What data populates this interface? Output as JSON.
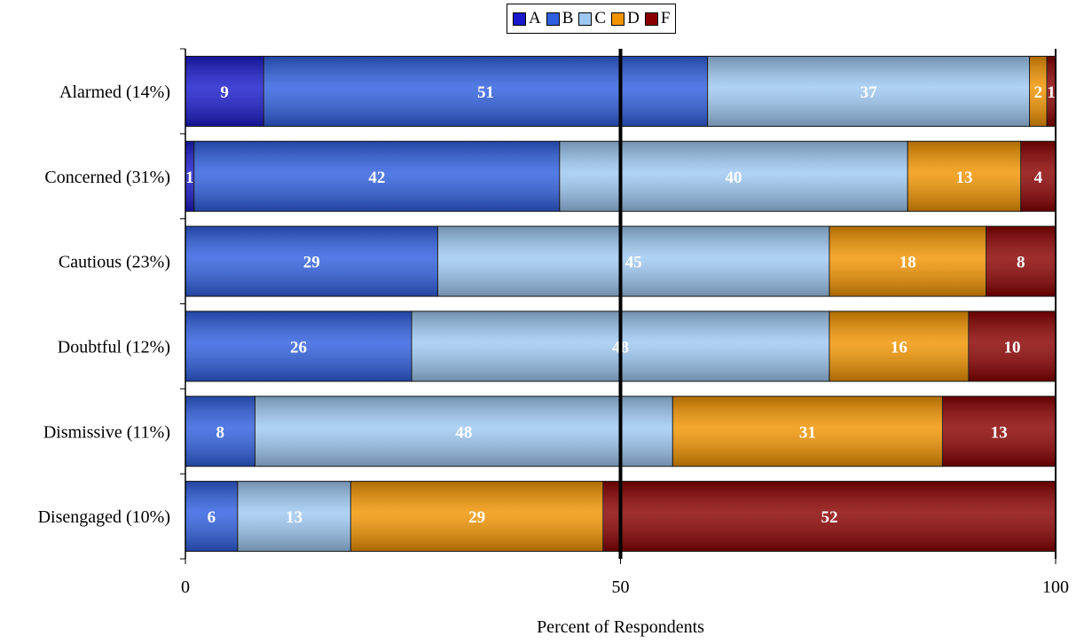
{
  "chart_data": {
    "type": "bar",
    "orientation": "horizontal",
    "stacked": true,
    "categories": [
      "Alarmed (14%)",
      "Concerned (31%)",
      "Cautious (23%)",
      "Doubtful (12%)",
      "Dismissive (11%)",
      "Disengaged (10%)"
    ],
    "series": [
      {
        "name": "A",
        "values": [
          9,
          1,
          0,
          0,
          0,
          0
        ],
        "color": "#1a1acc"
      },
      {
        "name": "B",
        "values": [
          51,
          42,
          29,
          26,
          8,
          6
        ],
        "color": "#2f5fe0"
      },
      {
        "name": "C",
        "values": [
          37,
          40,
          45,
          48,
          48,
          13
        ],
        "color": "#9ec8f2"
      },
      {
        "name": "D",
        "values": [
          2,
          13,
          18,
          16,
          31,
          29
        ],
        "color": "#f29400"
      },
      {
        "name": "F",
        "values": [
          1,
          4,
          8,
          10,
          13,
          52
        ],
        "color": "#8a0000"
      }
    ],
    "xlabel": "Percent of Respondents",
    "ylabel": "",
    "xlim": [
      0,
      100
    ],
    "xticks": [
      "0",
      "50",
      "100"
    ],
    "legend_position": "top-center",
    "grid": false
  }
}
